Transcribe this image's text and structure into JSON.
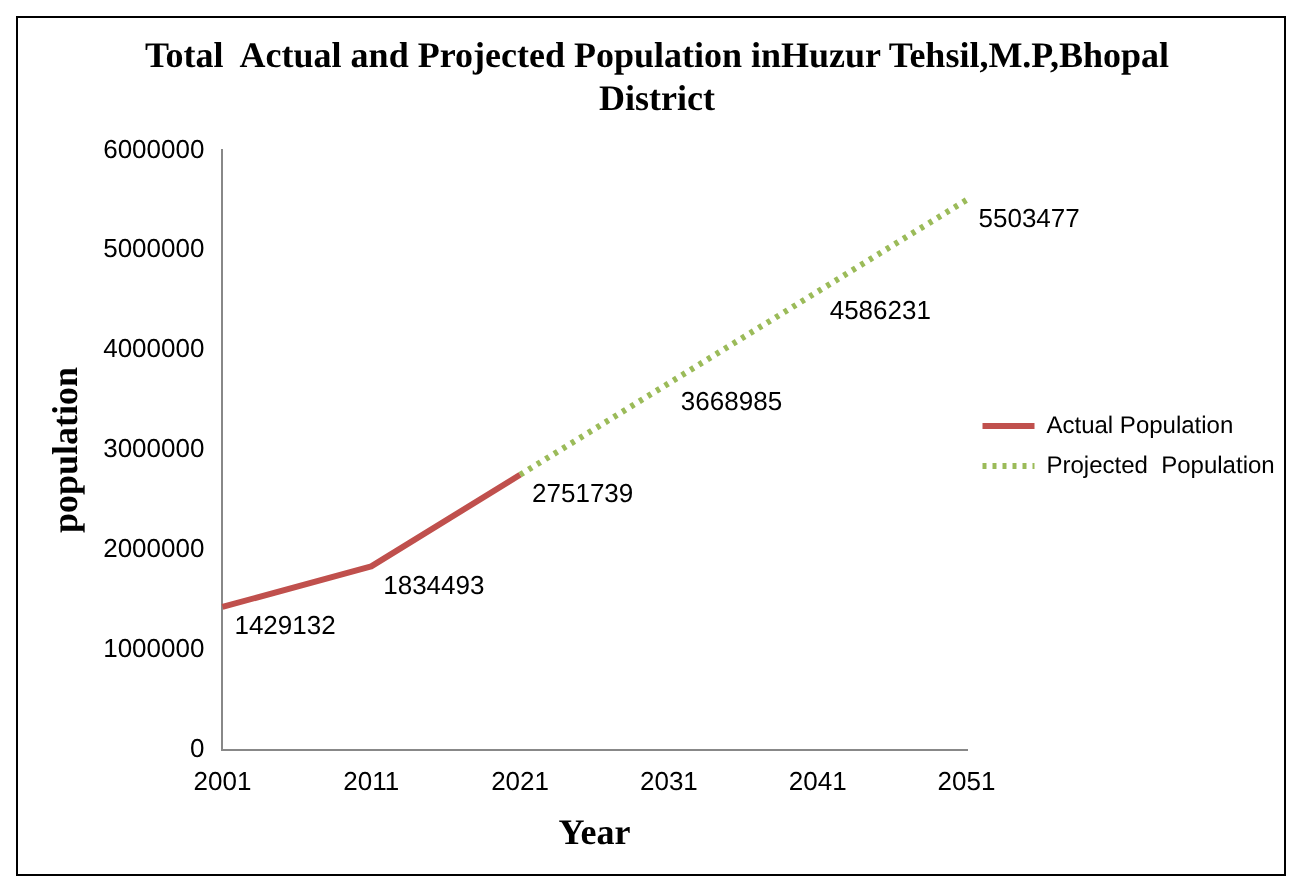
{
  "chart_data": {
    "type": "line",
    "title": "Total  Actual and Projected Population inHuzur Tehsil,M.P,Bhopal District",
    "xlabel": "Year",
    "ylabel": "population",
    "categories": [
      "2001",
      "2011",
      "2021",
      "2031",
      "2041",
      "2051"
    ],
    "series": [
      {
        "name": "Actual Population",
        "color": "#c0504d",
        "line_style": "solid",
        "values": [
          1429132,
          1834493,
          2751739,
          null,
          null,
          null
        ],
        "value_labels": [
          "1429132",
          "1834493",
          "2751739",
          null,
          null,
          null
        ]
      },
      {
        "name": "Projected  Population",
        "color": "#9bbb59",
        "line_style": "dotted",
        "values": [
          null,
          null,
          2751739,
          3668985,
          4586231,
          5503477
        ],
        "value_labels": [
          null,
          null,
          null,
          "3668985",
          "4586231",
          "5503477"
        ]
      }
    ],
    "ylim": [
      0,
      6000000
    ],
    "yticks": [
      0,
      1000000,
      2000000,
      3000000,
      4000000,
      5000000,
      6000000
    ],
    "grid": false,
    "legend": "right",
    "marker": "none"
  }
}
